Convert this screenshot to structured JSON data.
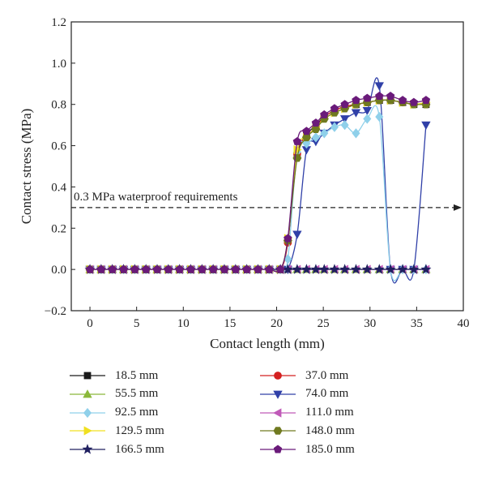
{
  "chart_data": {
    "type": "line",
    "title": "",
    "xlabel": "Contact length (mm)",
    "ylabel": "Contact stress (MPa)",
    "xlim": [
      -2,
      40
    ],
    "ylim": [
      -0.2,
      1.2
    ],
    "xticks": [
      0,
      5,
      10,
      15,
      20,
      25,
      30,
      35,
      40
    ],
    "yticks": [
      -0.2,
      0.0,
      0.2,
      0.4,
      0.6,
      0.8,
      1.0,
      1.2
    ],
    "ytick_labels": [
      "−0.2",
      "0.0",
      "0.2",
      "0.4",
      "0.6",
      "0.8",
      "1.0",
      "1.2"
    ],
    "grid": false,
    "legend_position": "bottom",
    "annotation": {
      "text": "0.3 MPa waterproof requirements",
      "y": 0.3,
      "style": "dashed-arrow"
    },
    "series": [
      {
        "name": "18.5 mm",
        "color": "#1a1a1a",
        "marker": "square",
        "x": [
          0,
          1.2,
          2.4,
          3.6,
          4.8,
          6,
          7.2,
          8.4,
          9.6,
          10.8,
          12,
          13.2,
          14.4,
          15.6,
          16.8,
          18,
          19.2,
          20.4,
          21.2,
          22.2,
          23.2,
          24.2,
          25.1,
          26.2,
          27.3,
          28.5,
          29.7,
          31,
          32.2,
          33.5,
          34.7,
          36
        ],
        "y": [
          0,
          0,
          0,
          0,
          0,
          0,
          0,
          0,
          0,
          0,
          0,
          0,
          0,
          0,
          0,
          0,
          0,
          0,
          0.14,
          0.55,
          0.65,
          0.7,
          0.74,
          0.77,
          0.79,
          0.8,
          0.81,
          0.82,
          0.82,
          0.81,
          0.8,
          0.8
        ]
      },
      {
        "name": "37.0 mm",
        "color": "#d42020",
        "marker": "circle",
        "x": [
          0,
          1.2,
          2.4,
          3.6,
          4.8,
          6,
          7.2,
          8.4,
          9.6,
          10.8,
          12,
          13.2,
          14.4,
          15.6,
          16.8,
          18,
          19.2,
          20.4,
          21.2,
          22.2,
          23.2,
          24.2,
          25.1,
          26.2,
          27.3,
          28.5,
          29.7,
          31,
          32.2,
          33.5,
          34.7,
          36
        ],
        "y": [
          0,
          0,
          0,
          0,
          0,
          0,
          0,
          0,
          0,
          0,
          0,
          0,
          0,
          0,
          0,
          0,
          0,
          0,
          0.13,
          0.56,
          0.64,
          0.69,
          0.74,
          0.77,
          0.79,
          0.8,
          0.81,
          0.82,
          0.82,
          0.81,
          0.8,
          0.8
        ]
      },
      {
        "name": "55.5 mm",
        "color": "#8ab83a",
        "marker": "triangle-up",
        "x": [
          0,
          1.2,
          2.4,
          3.6,
          4.8,
          6,
          7.2,
          8.4,
          9.6,
          10.8,
          12,
          13.2,
          14.4,
          15.6,
          16.8,
          18,
          19.2,
          20.4,
          21.2,
          22.2,
          23.2,
          24.2,
          25.1,
          26.2,
          27.3,
          28.5,
          29.7,
          31,
          32.2,
          33.5,
          34.7,
          36
        ],
        "y": [
          0,
          0,
          0,
          0,
          0,
          0,
          0,
          0,
          0,
          0,
          0,
          0,
          0,
          0,
          0,
          0,
          0,
          0,
          0,
          0,
          0,
          0,
          0,
          0,
          0,
          0,
          0,
          0,
          0,
          0,
          0,
          0
        ]
      },
      {
        "name": "74.0 mm",
        "color": "#3040a8",
        "marker": "triangle-down",
        "x": [
          0,
          1.2,
          2.4,
          3.6,
          4.8,
          6,
          7.2,
          8.4,
          9.6,
          10.8,
          12,
          13.2,
          14.4,
          15.6,
          16.8,
          18,
          19.2,
          20.4,
          21.2,
          22.2,
          23.2,
          24.2,
          25.1,
          26.2,
          27.3,
          28.5,
          29.7,
          31,
          32.2,
          33.5,
          34.7,
          36
        ],
        "y": [
          0,
          0,
          0,
          0,
          0,
          0,
          0,
          0,
          0,
          0,
          0,
          0,
          0,
          0,
          0,
          0,
          0,
          0,
          0,
          0.17,
          0.58,
          0.62,
          0.66,
          0.7,
          0.73,
          0.76,
          0.77,
          0.89,
          0,
          0,
          0,
          0.7
        ]
      },
      {
        "name": "92.5 mm",
        "color": "#8fd0ea",
        "marker": "diamond",
        "x": [
          0,
          1.2,
          2.4,
          3.6,
          4.8,
          6,
          7.2,
          8.4,
          9.6,
          10.8,
          12,
          13.2,
          14.4,
          15.6,
          16.8,
          18,
          19.2,
          20.4,
          21.2,
          22.2,
          23.2,
          24.2,
          25.1,
          26.2,
          27.3,
          28.5,
          29.7,
          31,
          32.2,
          33.5,
          34.7,
          36
        ],
        "y": [
          0,
          0,
          0,
          0,
          0,
          0,
          0,
          0,
          0,
          0,
          0,
          0,
          0,
          0,
          0,
          0,
          0,
          0,
          0.05,
          0.57,
          0.61,
          0.64,
          0.66,
          0.69,
          0.7,
          0.66,
          0.73,
          0.74,
          0,
          0,
          0,
          0
        ]
      },
      {
        "name": "111.0 mm",
        "color": "#c05ab8",
        "marker": "triangle-left",
        "x": [
          0,
          1.2,
          2.4,
          3.6,
          4.8,
          6,
          7.2,
          8.4,
          9.6,
          10.8,
          12,
          13.2,
          14.4,
          15.6,
          16.8,
          18,
          19.2,
          20.4,
          21.2,
          22.2,
          23.2,
          24.2,
          25.1,
          26.2,
          27.3,
          28.5,
          29.7,
          31,
          32.2,
          33.5,
          34.7,
          36
        ],
        "y": [
          0,
          0,
          0,
          0,
          0,
          0,
          0,
          0,
          0,
          0,
          0,
          0,
          0,
          0,
          0,
          0,
          0,
          0,
          0,
          0,
          0,
          0,
          0,
          0,
          0,
          0,
          0,
          0,
          0,
          0,
          0,
          0
        ]
      },
      {
        "name": "129.5 mm",
        "color": "#f0e020",
        "marker": "triangle-right",
        "x": [
          0,
          1.2,
          2.4,
          3.6,
          4.8,
          6,
          7.2,
          8.4,
          9.6,
          10.8,
          12,
          13.2,
          14.4,
          15.6,
          16.8,
          18,
          19.2,
          20.4,
          21.2,
          22.2,
          23.2,
          24.2,
          25.1,
          26.2,
          27.3,
          28.5,
          29.7,
          31,
          32.2,
          33.5,
          34.7,
          36
        ],
        "y": [
          0,
          0,
          0,
          0,
          0,
          0,
          0,
          0,
          0,
          0,
          0,
          0,
          0,
          0,
          0,
          0,
          0,
          0,
          0.15,
          0.58,
          0.64,
          0.69,
          0.73,
          0.76,
          0.78,
          0.8,
          0.81,
          0.82,
          0.82,
          0.81,
          0.8,
          0.81
        ]
      },
      {
        "name": "148.0 mm",
        "color": "#707a20",
        "marker": "hexagon",
        "x": [
          0,
          1.2,
          2.4,
          3.6,
          4.8,
          6,
          7.2,
          8.4,
          9.6,
          10.8,
          12,
          13.2,
          14.4,
          15.6,
          16.8,
          18,
          19.2,
          20.4,
          21.2,
          22.2,
          23.2,
          24.2,
          25.1,
          26.2,
          27.3,
          28.5,
          29.7,
          31,
          32.2,
          33.5,
          34.7,
          36
        ],
        "y": [
          0,
          0,
          0,
          0,
          0,
          0,
          0,
          0,
          0,
          0,
          0,
          0,
          0,
          0,
          0,
          0,
          0,
          0,
          0.14,
          0.54,
          0.64,
          0.68,
          0.73,
          0.76,
          0.78,
          0.8,
          0.81,
          0.82,
          0.82,
          0.81,
          0.8,
          0.8
        ]
      },
      {
        "name": "166.5 mm",
        "color": "#202060",
        "marker": "star",
        "x": [
          0,
          1.2,
          2.4,
          3.6,
          4.8,
          6,
          7.2,
          8.4,
          9.6,
          10.8,
          12,
          13.2,
          14.4,
          15.6,
          16.8,
          18,
          19.2,
          20.4,
          21.2,
          22.2,
          23.2,
          24.2,
          25.1,
          26.2,
          27.3,
          28.5,
          29.7,
          31,
          32.2,
          33.5,
          34.7,
          36
        ],
        "y": [
          0,
          0,
          0,
          0,
          0,
          0,
          0,
          0,
          0,
          0,
          0,
          0,
          0,
          0,
          0,
          0,
          0,
          0,
          0,
          0,
          0,
          0,
          0,
          0,
          0,
          0,
          0,
          0,
          0,
          0,
          0,
          0
        ]
      },
      {
        "name": "185.0 mm",
        "color": "#6a1a7a",
        "marker": "pentagon",
        "x": [
          0,
          1.2,
          2.4,
          3.6,
          4.8,
          6,
          7.2,
          8.4,
          9.6,
          10.8,
          12,
          13.2,
          14.4,
          15.6,
          16.8,
          18,
          19.2,
          20.4,
          21.2,
          22.2,
          23.2,
          24.2,
          25.1,
          26.2,
          27.3,
          28.5,
          29.7,
          31,
          32.2,
          33.5,
          34.7,
          36
        ],
        "y": [
          0,
          0,
          0,
          0,
          0,
          0,
          0,
          0,
          0,
          0,
          0,
          0,
          0,
          0,
          0,
          0,
          0,
          0,
          0.15,
          0.62,
          0.67,
          0.71,
          0.75,
          0.78,
          0.8,
          0.82,
          0.83,
          0.84,
          0.84,
          0.82,
          0.81,
          0.82
        ]
      }
    ]
  }
}
